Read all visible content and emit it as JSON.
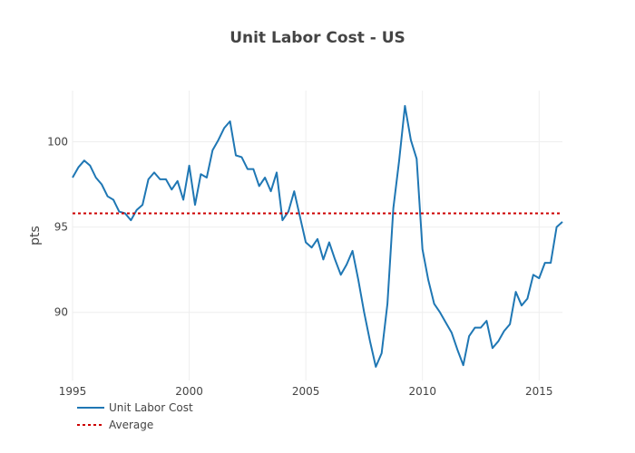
{
  "chart_data": {
    "type": "line",
    "title": "Unit Labor Cost - US",
    "xlabel": "",
    "ylabel": "pts",
    "xlim": [
      1995,
      2016
    ],
    "ylim": [
      86,
      103
    ],
    "x_ticks": [
      1995,
      2000,
      2005,
      2010,
      2015
    ],
    "y_ticks": [
      90,
      95,
      100
    ],
    "grid": true,
    "legend_position": "bottom-left",
    "colors": {
      "series": "#1f77b4",
      "average": "#cc0000",
      "grid": "#eeeeee"
    },
    "series": [
      {
        "name": "Unit Labor Cost",
        "style": "solid",
        "x": [
          1995.0,
          1995.25,
          1995.5,
          1995.75,
          1996.0,
          1996.25,
          1996.5,
          1996.75,
          1997.0,
          1997.25,
          1997.5,
          1997.75,
          1998.0,
          1998.25,
          1998.5,
          1998.75,
          1999.0,
          1999.25,
          1999.5,
          1999.75,
          2000.0,
          2000.25,
          2000.5,
          2000.75,
          2001.0,
          2001.25,
          2001.5,
          2001.75,
          2002.0,
          2002.25,
          2002.5,
          2002.75,
          2003.0,
          2003.25,
          2003.5,
          2003.75,
          2004.0,
          2004.25,
          2004.5,
          2004.75,
          2005.0,
          2005.25,
          2005.5,
          2005.75,
          2006.0,
          2006.25,
          2006.5,
          2006.75,
          2007.0,
          2007.25,
          2007.5,
          2007.75,
          2008.0,
          2008.25,
          2008.5,
          2008.75,
          2009.0,
          2009.25,
          2009.5,
          2009.75,
          2010.0,
          2010.25,
          2010.5,
          2010.75,
          2011.0,
          2011.25,
          2011.5,
          2011.75,
          2012.0,
          2012.25,
          2012.5,
          2012.75,
          2013.0,
          2013.25,
          2013.5,
          2013.75,
          2014.0,
          2014.25,
          2014.5,
          2014.75,
          2015.0,
          2015.25,
          2015.5,
          2015.75,
          2016.0
        ],
        "values": [
          97.9,
          98.5,
          98.9,
          98.6,
          97.9,
          97.5,
          96.8,
          96.6,
          95.9,
          95.8,
          95.4,
          96.0,
          96.3,
          97.8,
          98.2,
          97.8,
          97.8,
          97.2,
          97.7,
          96.6,
          98.6,
          96.3,
          98.1,
          97.9,
          99.5,
          100.1,
          100.8,
          101.2,
          99.2,
          99.1,
          98.4,
          98.4,
          97.4,
          97.9,
          97.1,
          98.2,
          95.4,
          95.9,
          97.1,
          95.6,
          94.1,
          93.8,
          94.3,
          93.1,
          94.1,
          93.1,
          92.2,
          92.8,
          93.6,
          91.9,
          90.0,
          88.3,
          86.8,
          87.6,
          90.5,
          96.1,
          98.9,
          102.1,
          100.1,
          99.0,
          93.7,
          91.9,
          90.5,
          90.0,
          89.4,
          88.8,
          87.8,
          86.9,
          88.6,
          89.1,
          89.1,
          89.5,
          87.9,
          88.3,
          88.9,
          89.3,
          91.2,
          90.4,
          90.8,
          92.2,
          92.0,
          92.9,
          92.9,
          95.0,
          95.3
        ]
      },
      {
        "name": "Average",
        "style": "dotted",
        "x": [
          1995,
          2016
        ],
        "values": [
          95.8,
          95.8
        ]
      }
    ]
  }
}
